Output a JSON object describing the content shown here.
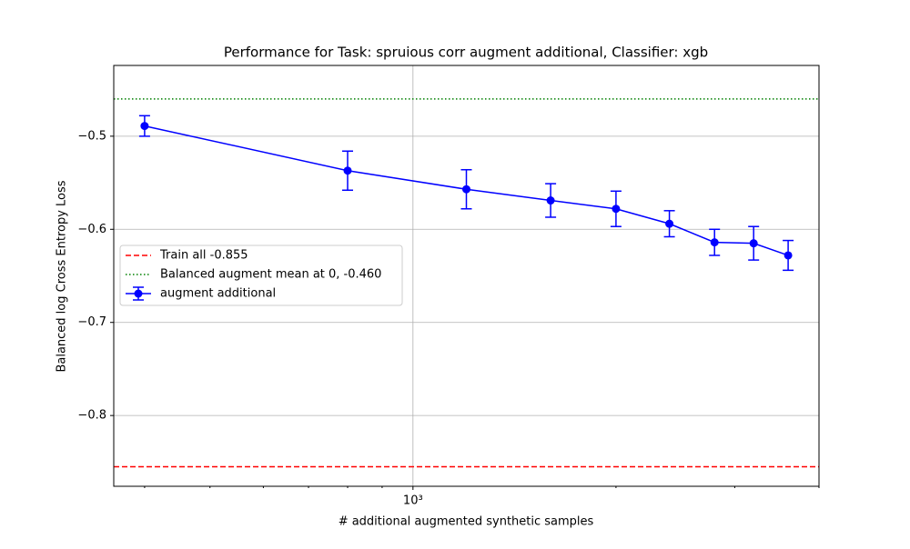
{
  "chart_data": {
    "type": "errorbar-line",
    "title": "Performance for Task: spruious corr augment additional, Classifier: xgb",
    "x_label": "# additional augmented synthetic samples",
    "y_label": "Balanced log Cross Entropy Loss",
    "x_scale": "log",
    "xlim": [
      360,
      4000
    ],
    "ylim": [
      -0.876,
      -0.424
    ],
    "xticks": [
      {
        "value": 1000,
        "label": "10³"
      }
    ],
    "xminor_ticks": [
      400,
      500,
      600,
      700,
      800,
      900,
      2000,
      3000,
      4000
    ],
    "yticks": [
      {
        "value": -0.5,
        "label": "−0.5"
      },
      {
        "value": -0.6,
        "label": "−0.6"
      },
      {
        "value": -0.7,
        "label": "−0.7"
      },
      {
        "value": -0.8,
        "label": "−0.8"
      }
    ],
    "grid": true,
    "legend": "center left",
    "hlines": [
      {
        "name": "Train all -0.855",
        "value": -0.855,
        "color": "#ff0000",
        "style": "dashed"
      },
      {
        "name": "Balanced augment mean at 0, -0.460",
        "value": -0.46,
        "color": "#008000",
        "style": "dotted"
      }
    ],
    "series": [
      {
        "name": "augment additional",
        "color": "#0000ff",
        "x": [
          400,
          800,
          1200,
          1600,
          2000,
          2400,
          2800,
          3200,
          3600
        ],
        "values": [
          -0.489,
          -0.537,
          -0.557,
          -0.569,
          -0.578,
          -0.594,
          -0.614,
          -0.615,
          -0.628
        ],
        "errors": [
          0.011,
          0.021,
          0.021,
          0.018,
          0.019,
          0.014,
          0.014,
          0.018,
          0.016
        ]
      }
    ]
  }
}
